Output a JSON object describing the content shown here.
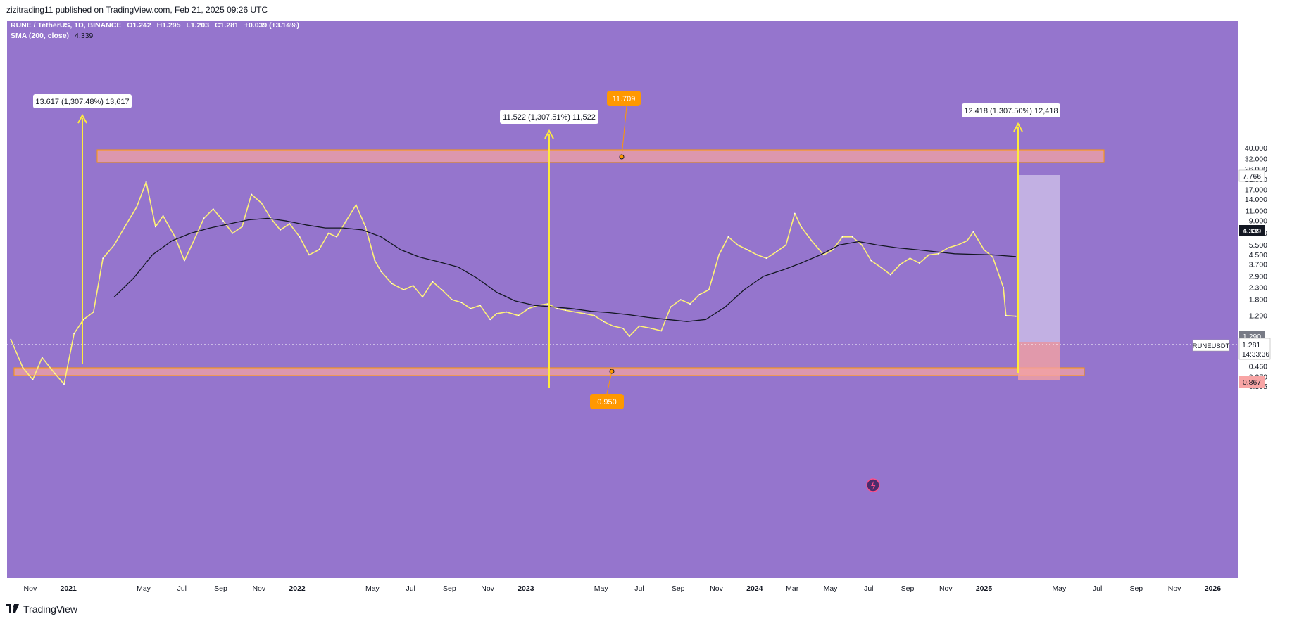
{
  "header": {
    "publisher": "zizitrading11 published on TradingView.com, Feb 21, 2025 09:26 UTC"
  },
  "legend": {
    "symbol_line": "RUNE / TetherUS, 1D, BINANCE",
    "open": "O1.242",
    "high": "H1.295",
    "low": "L1.203",
    "close": "C1.281",
    "change": "+0.039 (+3.14%)",
    "sma_label": "SMA (200, close)",
    "sma_value": "4.339"
  },
  "annotations": {
    "measure_1": "13.617 (1,307.48%) 13,617",
    "measure_2": "11.522 (1,307.51%) 11,522",
    "measure_3": "12.418 (1,307.50%) 12,418",
    "top_callout": "11.709",
    "bottom_callout": "0.950"
  },
  "price_scale": {
    "ticks": [
      "40.000",
      "32.000",
      "26.000",
      "21.000",
      "17.000",
      "14.000",
      "11.000",
      "9.000",
      "7.000",
      "5.500",
      "4.500",
      "3.700",
      "2.900",
      "2.300",
      "1.800",
      "1.290",
      "0.700",
      "0.560",
      "0.460",
      "0.370",
      "0.305"
    ],
    "label_target": "7.766",
    "label_sma": "4.339",
    "label_last": "1.290",
    "label_stop": "0.867",
    "symbol_tag": "RUNEUSDT",
    "symbol_price": "1.281",
    "symbol_countdown": "14:33:36"
  },
  "time_axis": {
    "ticks": [
      "Nov",
      "2021",
      "May",
      "Jul",
      "Sep",
      "Nov",
      "2022",
      "May",
      "Jul",
      "Sep",
      "Nov",
      "2023",
      "May",
      "Jul",
      "Sep",
      "Nov",
      "2024",
      "Mar",
      "May",
      "Jul",
      "Sep",
      "Nov",
      "2025",
      "May",
      "Jul",
      "Sep",
      "Nov",
      "2026"
    ]
  },
  "footer": {
    "brand": "TradingView"
  },
  "colors": {
    "background": "#9575cd",
    "price_line": "#fff176",
    "sma_line": "#131722",
    "zone_fill": "#f4a3a3",
    "zone_border": "#ff9800",
    "arrow": "#ffeb3b",
    "callout": "#ff9800"
  },
  "chart_data": {
    "type": "line",
    "title": "RUNE / TetherUS, 1D, BINANCE",
    "y_scale": "log",
    "ylim": [
      0.28,
      42
    ],
    "xlim": [
      "2020-09-25",
      "2026-02-10"
    ],
    "series": [
      {
        "name": "RUNE / TetherUS",
        "x": [
          "2020-10-01",
          "2020-10-20",
          "2020-11-05",
          "2020-11-20",
          "2020-12-10",
          "2020-12-25",
          "2021-01-10",
          "2021-01-25",
          "2021-02-10",
          "2021-02-25",
          "2021-03-15",
          "2021-04-01",
          "2021-04-20",
          "2021-05-05",
          "2021-05-20",
          "2021-06-01",
          "2021-06-20",
          "2021-07-05",
          "2021-07-20",
          "2021-08-05",
          "2021-08-20",
          "2021-09-05",
          "2021-09-20",
          "2021-10-05",
          "2021-10-20",
          "2021-11-05",
          "2021-11-20",
          "2021-12-05",
          "2021-12-20",
          "2022-01-05",
          "2022-01-20",
          "2022-02-05",
          "2022-02-20",
          "2022-03-05",
          "2022-03-20",
          "2022-04-05",
          "2022-04-20",
          "2022-05-05",
          "2022-05-15",
          "2022-06-01",
          "2022-06-20",
          "2022-07-05",
          "2022-07-20",
          "2022-08-05",
          "2022-08-20",
          "2022-09-05",
          "2022-09-20",
          "2022-10-05",
          "2022-10-20",
          "2022-11-05",
          "2022-11-15",
          "2022-12-01",
          "2022-12-20",
          "2023-01-05",
          "2023-01-20",
          "2023-02-05",
          "2023-02-20",
          "2023-03-05",
          "2023-03-20",
          "2023-04-05",
          "2023-04-20",
          "2023-05-05",
          "2023-05-20",
          "2023-06-05",
          "2023-06-15",
          "2023-07-01",
          "2023-07-20",
          "2023-08-05",
          "2023-08-20",
          "2023-09-05",
          "2023-09-20",
          "2023-10-05",
          "2023-10-20",
          "2023-11-05",
          "2023-11-20",
          "2023-12-05",
          "2023-12-20",
          "2024-01-05",
          "2024-01-20",
          "2024-02-05",
          "2024-02-20",
          "2024-03-05",
          "2024-03-15",
          "2024-04-01",
          "2024-04-20",
          "2024-05-05",
          "2024-05-20",
          "2024-06-05",
          "2024-06-20",
          "2024-07-05",
          "2024-07-20",
          "2024-08-05",
          "2024-08-20",
          "2024-09-05",
          "2024-09-20",
          "2024-10-05",
          "2024-10-20",
          "2024-11-05",
          "2024-11-20",
          "2024-12-05",
          "2024-12-15",
          "2025-01-01",
          "2025-01-15",
          "2025-02-01",
          "2025-02-05",
          "2025-02-21"
        ],
        "values": [
          0.8,
          0.45,
          0.35,
          0.55,
          0.4,
          0.32,
          0.9,
          1.2,
          1.4,
          4.2,
          5.5,
          8.0,
          12.0,
          20.0,
          8.0,
          10.0,
          6.5,
          4.0,
          6.0,
          9.5,
          11.5,
          9.0,
          7.0,
          8.0,
          15.5,
          13.0,
          9.5,
          7.5,
          8.5,
          6.5,
          4.5,
          5.0,
          7.0,
          6.5,
          9.0,
          12.5,
          8.0,
          4.0,
          3.2,
          2.5,
          2.2,
          2.4,
          1.9,
          2.6,
          2.2,
          1.8,
          1.7,
          1.5,
          1.6,
          1.2,
          1.35,
          1.4,
          1.3,
          1.5,
          1.6,
          1.65,
          1.5,
          1.45,
          1.4,
          1.35,
          1.3,
          1.15,
          1.05,
          1.0,
          0.85,
          1.05,
          1.0,
          0.95,
          1.55,
          1.8,
          1.65,
          2.0,
          2.2,
          4.5,
          6.5,
          5.5,
          5.0,
          4.5,
          4.2,
          4.8,
          5.5,
          10.5,
          8.0,
          6.0,
          4.5,
          5.0,
          6.5,
          6.5,
          5.5,
          4.0,
          3.5,
          3.0,
          3.7,
          4.2,
          3.8,
          4.5,
          4.6,
          5.2,
          5.5,
          6.0,
          7.2,
          5.0,
          4.3,
          2.3,
          1.3,
          1.281
        ]
      },
      {
        "name": "SMA (200, close)",
        "x": [
          "2021-03-15",
          "2021-04-15",
          "2021-05-15",
          "2021-06-15",
          "2021-07-15",
          "2021-08-15",
          "2021-09-15",
          "2021-10-15",
          "2021-11-15",
          "2021-12-15",
          "2022-01-15",
          "2022-02-15",
          "2022-03-15",
          "2022-04-15",
          "2022-05-15",
          "2022-06-15",
          "2022-07-15",
          "2022-08-15",
          "2022-09-15",
          "2022-10-15",
          "2022-11-15",
          "2022-12-15",
          "2023-01-15",
          "2023-02-15",
          "2023-03-15",
          "2023-04-15",
          "2023-05-15",
          "2023-06-15",
          "2023-07-15",
          "2023-08-15",
          "2023-09-15",
          "2023-10-15",
          "2023-11-15",
          "2023-12-15",
          "2024-01-15",
          "2024-02-15",
          "2024-03-15",
          "2024-04-15",
          "2024-05-15",
          "2024-06-15",
          "2024-07-15",
          "2024-08-15",
          "2024-09-15",
          "2024-10-15",
          "2024-11-15",
          "2024-12-15",
          "2025-01-15",
          "2025-02-21"
        ],
        "values": [
          1.9,
          2.8,
          4.5,
          6.0,
          7.0,
          7.8,
          8.5,
          9.2,
          9.5,
          9.0,
          8.3,
          7.8,
          7.8,
          7.5,
          6.5,
          5.0,
          4.3,
          3.9,
          3.5,
          2.8,
          2.1,
          1.75,
          1.6,
          1.55,
          1.5,
          1.42,
          1.38,
          1.32,
          1.25,
          1.2,
          1.15,
          1.2,
          1.55,
          2.2,
          2.9,
          3.3,
          3.8,
          4.5,
          5.5,
          5.9,
          5.5,
          5.2,
          5.0,
          4.8,
          4.6,
          4.55,
          4.5,
          4.339
        ]
      }
    ],
    "annotations": [
      {
        "label": "11.709",
        "date": "2023-11-01",
        "price": 11.709
      },
      {
        "label": "0.950",
        "date": "2023-10-20",
        "price": 0.95
      }
    ]
  }
}
